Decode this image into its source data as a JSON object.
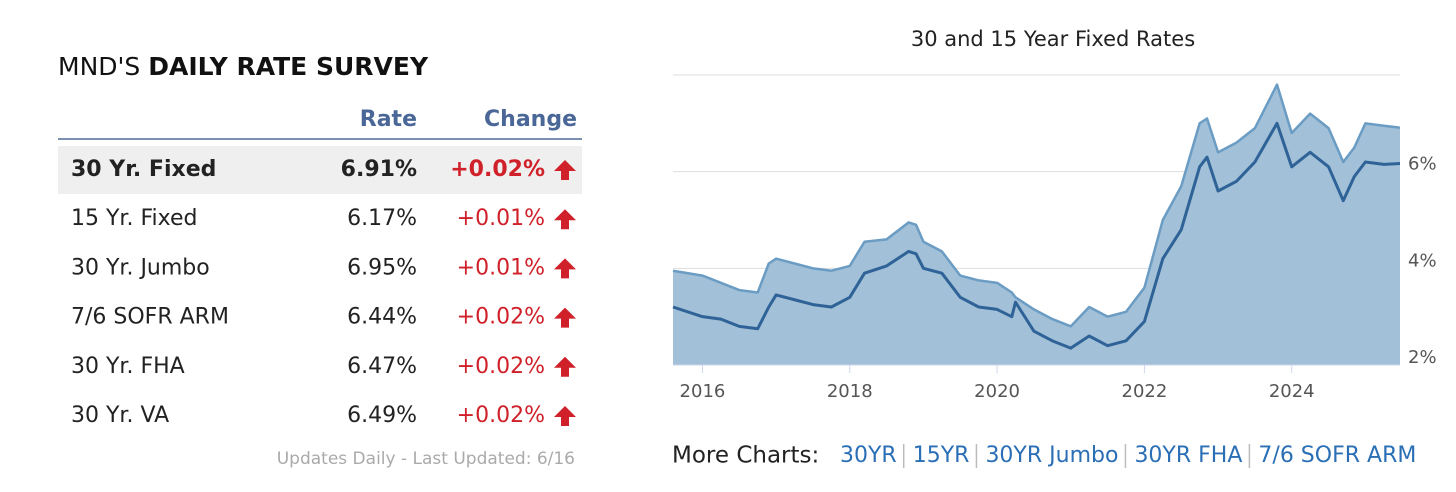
{
  "survey": {
    "title_prefix": "MND'S",
    "title_main": "DAILY RATE SURVEY",
    "headers": [
      "Rate",
      "Change"
    ],
    "rows": [
      [
        "30 Yr. Fixed",
        "6.91%",
        "+0.02%"
      ],
      [
        "15 Yr. Fixed",
        "6.17%",
        "+0.01%"
      ],
      [
        "30 Yr. Jumbo",
        "6.95%",
        "+0.01%"
      ],
      [
        "7/6 SOFR ARM",
        "6.44%",
        "+0.02%"
      ],
      [
        "30 Yr. FHA",
        "6.47%",
        "+0.02%"
      ],
      [
        "30 Yr. VA",
        "6.49%",
        "+0.02%"
      ]
    ],
    "footer": "Updates Daily - Last Updated: 6/16"
  },
  "chart_data": {
    "type": "area",
    "title": "30 and 15 Year Fixed Rates",
    "x": [
      2015.6,
      2016.0,
      2016.25,
      2016.5,
      2016.75,
      2016.9,
      2017.0,
      2017.25,
      2017.5,
      2017.75,
      2018.0,
      2018.2,
      2018.5,
      2018.8,
      2018.9,
      2019.0,
      2019.25,
      2019.5,
      2019.75,
      2020.0,
      2020.2,
      2020.25,
      2020.5,
      2020.75,
      2021.0,
      2021.25,
      2021.5,
      2021.75,
      2022.0,
      2022.25,
      2022.5,
      2022.75,
      2022.85,
      2023.0,
      2023.25,
      2023.5,
      2023.8,
      2024.0,
      2024.25,
      2024.5,
      2024.7,
      2024.85,
      2025.0,
      2025.25,
      2025.47
    ],
    "series": [
      {
        "color": "#6b9cc3",
        "fill": "#9dbdd5",
        "values": [
          3.95,
          3.85,
          3.7,
          3.55,
          3.5,
          4.1,
          4.2,
          4.1,
          4.0,
          3.95,
          4.05,
          4.55,
          4.6,
          4.95,
          4.9,
          4.55,
          4.35,
          3.85,
          3.75,
          3.7,
          3.5,
          3.4,
          3.15,
          2.95,
          2.8,
          3.2,
          3.0,
          3.1,
          3.6,
          5.0,
          5.7,
          7.0,
          7.1,
          6.4,
          6.6,
          6.9,
          7.8,
          6.8,
          7.2,
          6.9,
          6.2,
          6.5,
          7.0,
          6.95,
          6.91
        ]
      },
      {
        "color": "#2f6398",
        "values": [
          3.2,
          3.0,
          2.95,
          2.8,
          2.75,
          3.2,
          3.45,
          3.35,
          3.25,
          3.2,
          3.4,
          3.9,
          4.05,
          4.35,
          4.3,
          4.0,
          3.9,
          3.4,
          3.2,
          3.15,
          3.0,
          3.3,
          2.7,
          2.5,
          2.35,
          2.6,
          2.4,
          2.5,
          2.9,
          4.2,
          4.8,
          6.1,
          6.3,
          5.6,
          5.8,
          6.2,
          7.0,
          6.1,
          6.4,
          6.1,
          5.4,
          5.9,
          6.2,
          6.15,
          6.17
        ]
      }
    ],
    "xlim": [
      2015.6,
      2025.47
    ],
    "xticks": [
      2016,
      2018,
      2020,
      2022,
      2024
    ],
    "ylim": [
      2,
      8
    ],
    "yticks": [
      {
        "value": 2,
        "label": "2%"
      },
      {
        "value": 4,
        "label": "4%"
      },
      {
        "value": 6,
        "label": "6%"
      }
    ],
    "grid": true
  },
  "more_charts": {
    "label": "More Charts:",
    "links": [
      "30YR",
      "15YR",
      "30YR Jumbo",
      "30YR FHA",
      "7/6 SOFR ARM"
    ]
  }
}
